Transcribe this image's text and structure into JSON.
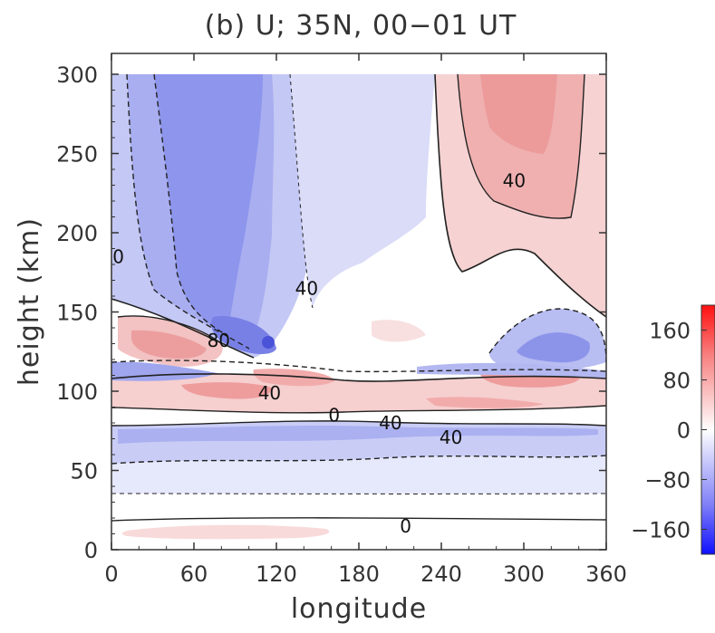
{
  "chart_data": {
    "type": "heatmap",
    "title": "(b) U; 35N, 00−01 UT",
    "xlabel": "longitude",
    "ylabel": "height (km)",
    "xlim": [
      0,
      360
    ],
    "ylim": [
      0,
      305
    ],
    "x_ticks": [
      "0",
      "60",
      "120",
      "180",
      "240",
      "300",
      "360"
    ],
    "y_ticks": [
      "0",
      "50",
      "100",
      "150",
      "200",
      "250",
      "300"
    ],
    "colorbar": {
      "range": [
        -200,
        200
      ],
      "ticks": [
        "160",
        "80",
        "0",
        "−80",
        "−160"
      ],
      "colors": {
        "negative": "#1a1aff",
        "zero": "#ffffff",
        "positive": "#ff1a1a"
      }
    },
    "contour_interval": 20,
    "contour_labels": [
      {
        "text": "0",
        "lon": 5,
        "height": 185
      },
      {
        "text": "40",
        "lon": 142,
        "height": 165
      },
      {
        "text": "80",
        "lon": 78,
        "height": 132
      },
      {
        "text": "40",
        "lon": 115,
        "height": 99
      },
      {
        "text": "0",
        "lon": 162,
        "height": 85
      },
      {
        "text": "40",
        "lon": 203,
        "height": 80
      },
      {
        "text": "40",
        "lon": 247,
        "height": 71
      },
      {
        "text": "40",
        "lon": 293,
        "height": 233
      },
      {
        "text": "0",
        "lon": 214,
        "height": 15
      }
    ],
    "regions": [
      {
        "lon": [
          0,
          360
        ],
        "height": [
          30,
          55
        ],
        "u": -15
      },
      {
        "lon": [
          0,
          360
        ],
        "height": [
          55,
          80
        ],
        "u": -35
      },
      {
        "lon": [
          0,
          160
        ],
        "height": [
          90,
          105
        ],
        "u": 20
      },
      {
        "lon": [
          60,
          120
        ],
        "height": [
          95,
          103
        ],
        "u": 60
      },
      {
        "lon": [
          180,
          340
        ],
        "height": [
          90,
          110
        ],
        "u": 25
      },
      {
        "lon": [
          100,
          160
        ],
        "height": [
          105,
          122
        ],
        "u": 30
      },
      {
        "lon": [
          0,
          60
        ],
        "height": [
          105,
          120
        ],
        "u": -50
      },
      {
        "lon": [
          10,
          90
        ],
        "height": [
          120,
          160
        ],
        "u": 35
      },
      {
        "lon": [
          0,
          140
        ],
        "height": [
          150,
          305
        ],
        "u": -70
      },
      {
        "lon": [
          60,
          140
        ],
        "height": [
          110,
          150
        ],
        "u": -90
      },
      {
        "lon": [
          140,
          230
        ],
        "height": [
          150,
          305
        ],
        "u": -25
      },
      {
        "lon": [
          230,
          340
        ],
        "height": [
          170,
          305
        ],
        "u": 40
      },
      {
        "lon": [
          260,
          330
        ],
        "height": [
          230,
          305
        ],
        "u": 60
      },
      {
        "lon": [
          270,
          360
        ],
        "height": [
          110,
          160
        ],
        "u": -60
      },
      {
        "lon": [
          0,
          160
        ],
        "height": [
          10,
          18
        ],
        "u": 10
      }
    ]
  }
}
